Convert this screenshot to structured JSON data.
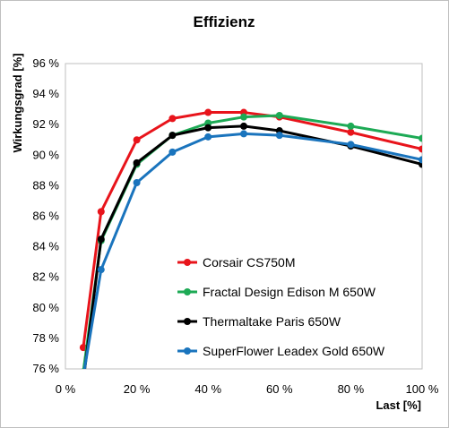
{
  "chart_data": {
    "type": "line",
    "title": "Effizienz",
    "xlabel": "Last [%]",
    "ylabel": "Wirkungsgrad [%]",
    "xlim": [
      0,
      100
    ],
    "ylim": [
      76,
      96
    ],
    "xticks": [
      0,
      20,
      40,
      60,
      80,
      100
    ],
    "xtick_labels": [
      "0 %",
      "20 %",
      "40 %",
      "60 %",
      "80 %",
      "100 %"
    ],
    "yticks": [
      76,
      78,
      80,
      82,
      84,
      86,
      88,
      90,
      92,
      94,
      96
    ],
    "ytick_labels": [
      "76 %",
      "78 %",
      "80 %",
      "82 %",
      "84 %",
      "86 %",
      "88 %",
      "90 %",
      "92 %",
      "94 %",
      "96 %"
    ],
    "grid": false,
    "legend_position": "bottom-right inside",
    "series": [
      {
        "name": "Corsair CS750M",
        "color": "#e8141b",
        "x": [
          5,
          10,
          20,
          30,
          40,
          50,
          60,
          80,
          100
        ],
        "y": [
          77.4,
          86.3,
          91.0,
          92.4,
          92.8,
          92.8,
          92.5,
          91.5,
          90.4
        ]
      },
      {
        "name": "Fractal Design Edison M 650W",
        "color": "#1daa55",
        "x": [
          5,
          10,
          20,
          30,
          40,
          50,
          60,
          80,
          100
        ],
        "y": [
          75.8,
          84.4,
          89.4,
          91.3,
          92.1,
          92.5,
          92.6,
          91.9,
          91.1
        ]
      },
      {
        "name": "Thermaltake Paris 650W",
        "color": "#000000",
        "x": [
          5,
          10,
          20,
          30,
          40,
          50,
          60,
          80,
          100
        ],
        "y": [
          75.2,
          84.5,
          89.5,
          91.3,
          91.8,
          91.9,
          91.6,
          90.6,
          89.4
        ]
      },
      {
        "name": "SuperFlower Leadex Gold 650W",
        "color": "#1a74bd",
        "x": [
          5,
          10,
          20,
          30,
          40,
          50,
          60,
          80,
          100
        ],
        "y": [
          75.5,
          82.5,
          88.2,
          90.2,
          91.2,
          91.4,
          91.3,
          90.7,
          89.7
        ]
      }
    ]
  }
}
